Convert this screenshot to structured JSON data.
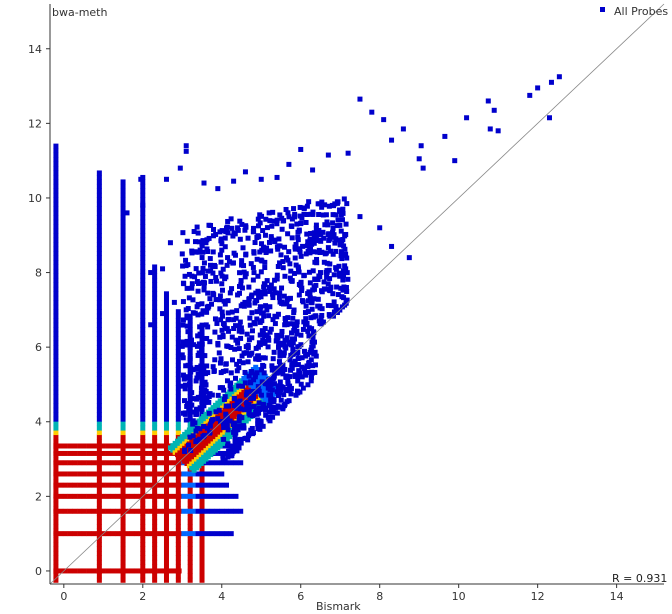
{
  "chart_data": {
    "type": "scatter",
    "xlabel": "Bismark",
    "ylabel": "bwa-meth",
    "xlim": [
      -0.35,
      15.2
    ],
    "ylim": [
      -0.35,
      15.2
    ],
    "x_ticks": [
      0,
      2,
      4,
      6,
      8,
      10,
      12,
      14
    ],
    "y_ticks": [
      0,
      2,
      4,
      6,
      8,
      10,
      12,
      14
    ],
    "legend": {
      "label": "All Probes",
      "color": "#0000cc",
      "position": "top-right"
    },
    "correlation_label": "R = 0.931",
    "reference_line": {
      "from": [
        -0.35,
        -0.35
      ],
      "to": [
        15.2,
        15.2
      ]
    },
    "colors": {
      "low_density": "#0000cc",
      "mid_low": "#0066ff",
      "mid": "#00b4b4",
      "mid_high": "#ffcc00",
      "high_density": "#cc0000"
    },
    "series": [
      {
        "name": "All Probes",
        "points": [
          [
            12.55,
            13.25
          ],
          [
            12.35,
            13.1
          ],
          [
            12.0,
            12.95
          ],
          [
            11.8,
            12.75
          ],
          [
            12.3,
            12.15
          ],
          [
            10.75,
            12.6
          ],
          [
            10.9,
            12.35
          ],
          [
            10.2,
            12.15
          ],
          [
            10.8,
            11.85
          ],
          [
            11.0,
            11.8
          ],
          [
            9.65,
            11.65
          ],
          [
            9.05,
            11.4
          ],
          [
            9.9,
            11.0
          ],
          [
            9.0,
            11.05
          ],
          [
            9.1,
            10.8
          ],
          [
            8.6,
            11.85
          ],
          [
            8.1,
            12.1
          ],
          [
            7.5,
            12.65
          ],
          [
            7.8,
            12.3
          ],
          [
            8.3,
            11.55
          ],
          [
            7.2,
            11.2
          ],
          [
            6.7,
            11.15
          ],
          [
            6.3,
            10.75
          ],
          [
            6.0,
            11.3
          ],
          [
            5.7,
            10.9
          ],
          [
            5.4,
            10.55
          ],
          [
            5.0,
            10.5
          ],
          [
            4.6,
            10.7
          ],
          [
            4.3,
            10.45
          ],
          [
            3.9,
            10.25
          ],
          [
            3.55,
            10.4
          ],
          [
            3.1,
            11.25
          ],
          [
            3.1,
            11.4
          ],
          [
            2.95,
            10.8
          ],
          [
            2.6,
            10.5
          ],
          [
            1.95,
            10.5
          ],
          [
            2.0,
            9.8
          ],
          [
            1.6,
            9.6
          ],
          [
            8.75,
            8.4
          ],
          [
            8.0,
            9.2
          ],
          [
            8.3,
            8.7
          ],
          [
            7.5,
            9.5
          ],
          [
            6.8,
            9.8
          ],
          [
            6.2,
            9.9
          ],
          [
            5.9,
            9.3
          ],
          [
            5.2,
            9.6
          ],
          [
            4.8,
            9.1
          ],
          [
            4.4,
            9.2
          ],
          [
            4.0,
            8.6
          ],
          [
            3.6,
            8.8
          ],
          [
            3.3,
            9.1
          ],
          [
            3.0,
            8.5
          ],
          [
            2.7,
            8.8
          ],
          [
            2.5,
            8.1
          ],
          [
            2.2,
            8.0
          ],
          [
            6.5,
            8.0
          ],
          [
            6.0,
            7.7
          ],
          [
            5.6,
            7.9
          ],
          [
            5.2,
            7.6
          ],
          [
            4.8,
            7.8
          ],
          [
            4.4,
            7.4
          ],
          [
            4.0,
            7.7
          ],
          [
            3.7,
            7.3
          ],
          [
            3.4,
            7.5
          ],
          [
            3.1,
            7.0
          ],
          [
            2.8,
            7.2
          ],
          [
            2.5,
            6.9
          ],
          [
            2.2,
            6.6
          ],
          [
            5.9,
            6.6
          ],
          [
            5.5,
            6.3
          ],
          [
            5.1,
            6.5
          ],
          [
            4.7,
            6.2
          ],
          [
            4.3,
            6.5
          ],
          [
            3.9,
            6.1
          ],
          [
            3.5,
            6.3
          ]
        ]
      }
    ]
  }
}
